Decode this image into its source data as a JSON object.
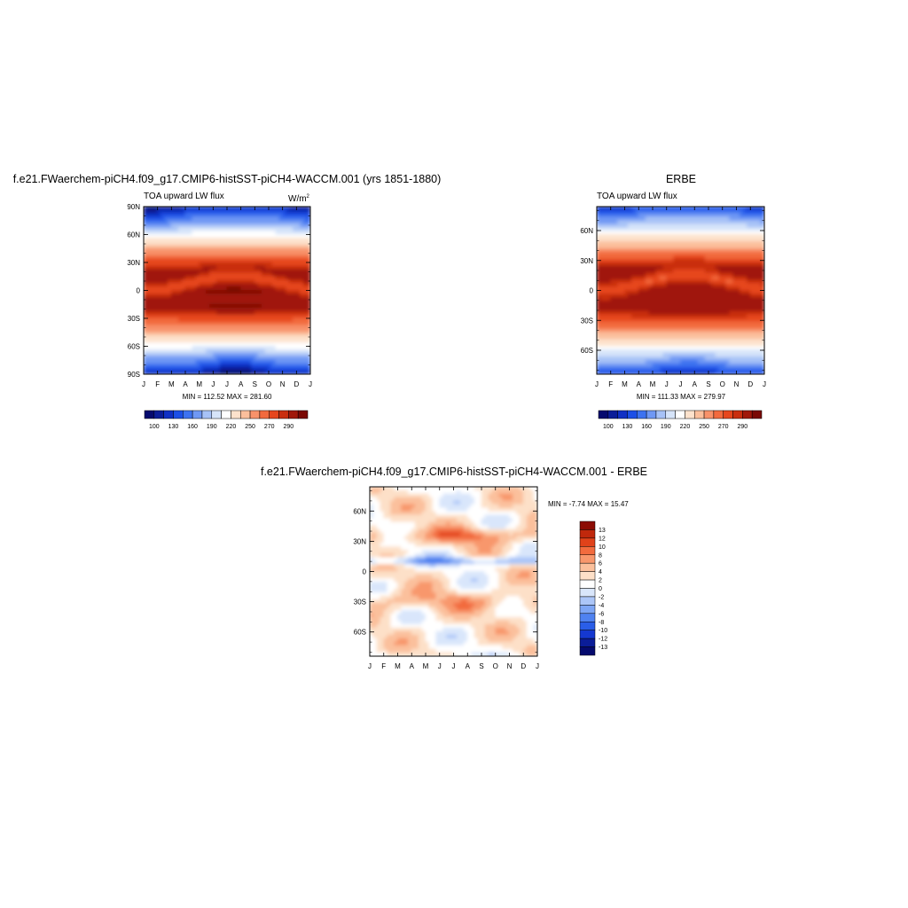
{
  "colors": {
    "palette": [
      "#050a6e",
      "#0b1d98",
      "#1030c4",
      "#1c4fe6",
      "#3d72f0",
      "#6f98f4",
      "#a7c2f7",
      "#d6e4f9",
      "#ffffff",
      "#fde2cc",
      "#fbbf9c",
      "#f8926a",
      "#f26a3e",
      "#e6461d",
      "#c92e0f",
      "#a0180a",
      "#7a0904"
    ],
    "diff_palette": [
      "#050a6e",
      "#0b1d98",
      "#1538d0",
      "#2a5ee8",
      "#4f82f0",
      "#7ea6f5",
      "#acc6f8",
      "#d9e6fb",
      "#ffffff",
      "#fde0c8",
      "#fbc09c",
      "#f8976c",
      "#f26b3e",
      "#e0421a",
      "#c0280c",
      "#8c0c04"
    ]
  },
  "panel1": {
    "title": "f.e21.FWaerchem-piCH4.f09_g17.CMIP6-histSST-piCH4-WACCM.001 (yrs 1851-1880)",
    "left_label": "TOA upward LW flux",
    "units": "W/m",
    "units_sup": "2",
    "stats": "MIN = 112.52  MAX = 281.60",
    "colorbar_labels": [
      "100",
      "130",
      "160",
      "190",
      "220",
      "250",
      "270",
      "290"
    ]
  },
  "panel2": {
    "title": "ERBE",
    "left_label": "TOA upward LW flux",
    "stats": "MIN = 111.33  MAX = 279.97",
    "colorbar_labels": [
      "100",
      "130",
      "160",
      "190",
      "220",
      "250",
      "270",
      "290"
    ]
  },
  "panel3": {
    "title": "f.e21.FWaerchem-piCH4.f09_g17.CMIP6-histSST-piCH4-WACCM.001 - ERBE",
    "stats": "MIN =  -7.74  MAX =  15.47",
    "colorbar_labels": [
      "13",
      "12",
      "10",
      "8",
      "6",
      "4",
      "2",
      "0",
      "-2",
      "-4",
      "-6",
      "-8",
      "-10",
      "-12",
      "-13"
    ]
  },
  "chart_data": [
    {
      "type": "heatmap",
      "title": "f.e21.FWaerchem-piCH4.f09_g17.CMIP6-histSST-piCH4-WACCM.001 (yrs 1851-1880)",
      "subtitle": "TOA upward LW flux",
      "x_ticks": [
        "J",
        "F",
        "M",
        "A",
        "M",
        "J",
        "J",
        "A",
        "S",
        "O",
        "N",
        "D",
        "J"
      ],
      "y_ticks": [
        "90N",
        "60N",
        "30N",
        "0",
        "30S",
        "60S",
        "90S"
      ],
      "min": 112.52,
      "max": 281.6,
      "levels": [
        100,
        110,
        120,
        130,
        140,
        150,
        160,
        170,
        180,
        190,
        200,
        210,
        220,
        230,
        240,
        250,
        260,
        270,
        280,
        290
      ]
    },
    {
      "type": "heatmap",
      "title": "ERBE",
      "subtitle": "TOA upward LW flux",
      "x_ticks": [
        "J",
        "F",
        "M",
        "A",
        "M",
        "J",
        "J",
        "A",
        "S",
        "O",
        "N",
        "D",
        "J"
      ],
      "y_ticks": [
        "60N",
        "30N",
        "0",
        "30S",
        "60S"
      ],
      "min": 111.33,
      "max": 279.97,
      "levels": [
        100,
        110,
        120,
        130,
        140,
        150,
        160,
        170,
        180,
        190,
        200,
        210,
        220,
        230,
        240,
        250,
        260,
        270,
        280,
        290
      ]
    },
    {
      "type": "heatmap",
      "title": "f.e21.FWaerchem-piCH4.f09_g17.CMIP6-histSST-piCH4-WACCM.001 - ERBE",
      "x_ticks": [
        "J",
        "F",
        "M",
        "A",
        "M",
        "J",
        "J",
        "A",
        "S",
        "O",
        "N",
        "D",
        "J"
      ],
      "y_ticks": [
        "60N",
        "30N",
        "0",
        "30S",
        "60S"
      ],
      "min": -7.74,
      "max": 15.47,
      "levels": [
        -13,
        -12,
        -10,
        -8,
        -6,
        -4,
        -2,
        0,
        2,
        4,
        6,
        8,
        10,
        12,
        13
      ]
    }
  ]
}
